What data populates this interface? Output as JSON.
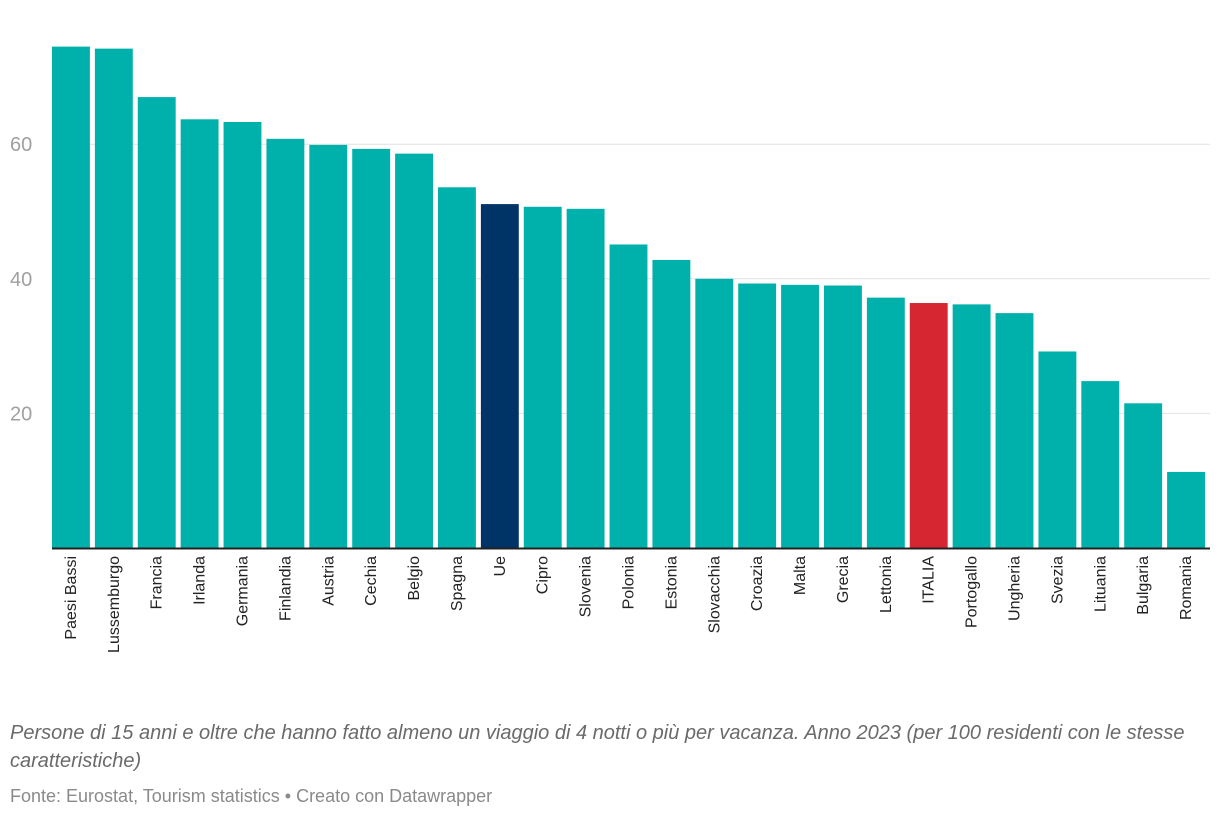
{
  "chart_data": {
    "type": "bar",
    "title": "",
    "xlabel": "",
    "ylabel": "",
    "ylim": [
      0,
      80
    ],
    "yticks": [
      20,
      40,
      60
    ],
    "grid": true,
    "categories": [
      "Paesi Bassi",
      "Lussemburgo",
      "Francia",
      "Irlanda",
      "Germania",
      "Finlandia",
      "Austria",
      "Cechia",
      "Belgio",
      "Spagna",
      "Ue",
      "Cipro",
      "Slovenia",
      "Polonia",
      "Estonia",
      "Slovacchia",
      "Croazia",
      "Malta",
      "Grecia",
      "Lettonia",
      "ITALIA",
      "Portogallo",
      "Ungheria",
      "Svezia",
      "Lituania",
      "Bulgaria",
      "Romania"
    ],
    "values": [
      74.5,
      74.2,
      67.0,
      63.7,
      63.3,
      60.8,
      59.9,
      59.3,
      58.6,
      53.6,
      51.1,
      50.7,
      50.4,
      45.1,
      42.8,
      40.0,
      39.3,
      39.1,
      39.0,
      37.2,
      36.4,
      36.2,
      34.9,
      29.2,
      24.8,
      21.5,
      11.3
    ],
    "colors": {
      "default": "#00b0aa",
      "highlight_eu": "#003366",
      "highlight_italy": "#d62631",
      "grid": "#e2e2e2",
      "axis": "#222222"
    },
    "highlights": {
      "Ue": "highlight_eu",
      "ITALIA": "highlight_italy"
    }
  },
  "caption": "Persone di 15 anni e oltre che hanno fatto almeno un viaggio di 4 notti o più per vacanza. Anno 2023 (per 100 residenti con le stesse caratteristiche)",
  "footer": "Fonte: Eurostat, Tourism statistics • Creato con Datawrapper"
}
